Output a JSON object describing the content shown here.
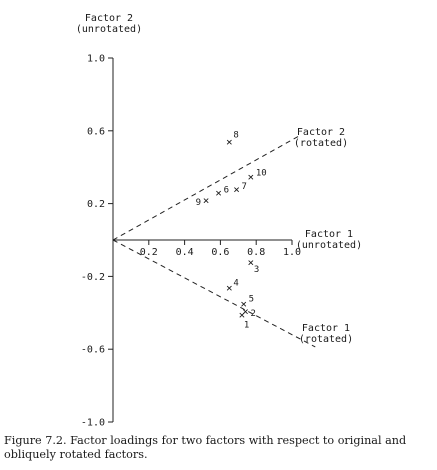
{
  "chart_data": {
    "type": "scatter",
    "x_axis": {
      "range": [
        -0.05,
        1.0
      ],
      "ticks": [
        {
          "value": 0.2,
          "label": "0.2"
        },
        {
          "value": 0.4,
          "label": "0.4"
        },
        {
          "value": 0.6,
          "label": "0.6"
        },
        {
          "value": 0.8,
          "label": "0.8"
        },
        {
          "value": 1.0,
          "label": "1.0"
        }
      ],
      "label_lines": [
        "Factor 1",
        "(unrotated)"
      ]
    },
    "y_axis": {
      "range": [
        -1.0,
        1.0
      ],
      "ticks": [
        {
          "value": 1.0,
          "label": "1.0"
        },
        {
          "value": 0.6,
          "label": "0.6"
        },
        {
          "value": 0.2,
          "label": "0.2"
        },
        {
          "value": -0.2,
          "label": "-0.2"
        },
        {
          "value": -0.6,
          "label": "-0.6"
        },
        {
          "value": -1.0,
          "label": "-1.0"
        }
      ],
      "label_lines": [
        "Factor 2",
        "(unrotated)"
      ]
    },
    "points": [
      {
        "label": "1",
        "x": 0.72,
        "y": -0.41
      },
      {
        "label": "2",
        "x": 0.74,
        "y": -0.39
      },
      {
        "label": "3",
        "x": 0.77,
        "y": -0.12
      },
      {
        "label": "4",
        "x": 0.65,
        "y": -0.26
      },
      {
        "label": "5",
        "x": 0.73,
        "y": -0.35
      },
      {
        "label": "6",
        "x": 0.59,
        "y": 0.26
      },
      {
        "label": "7",
        "x": 0.69,
        "y": 0.28
      },
      {
        "label": "8",
        "x": 0.65,
        "y": 0.54
      },
      {
        "label": "9",
        "x": 0.52,
        "y": 0.22
      },
      {
        "label": "10",
        "x": 0.77,
        "y": 0.35
      }
    ],
    "rotated_axes": [
      {
        "label_lines": [
          "Factor 2",
          "(rotated)"
        ],
        "direction": [
          1.0,
          0.55
        ]
      },
      {
        "label_lines": [
          "Factor 1",
          "(rotated)"
        ],
        "direction": [
          1.0,
          -0.52
        ]
      }
    ],
    "marker": "×",
    "grid": false,
    "legend": "none"
  },
  "caption": "Figure 7.2. Factor loadings for two factors with respect to original and obliquely rotated factors."
}
